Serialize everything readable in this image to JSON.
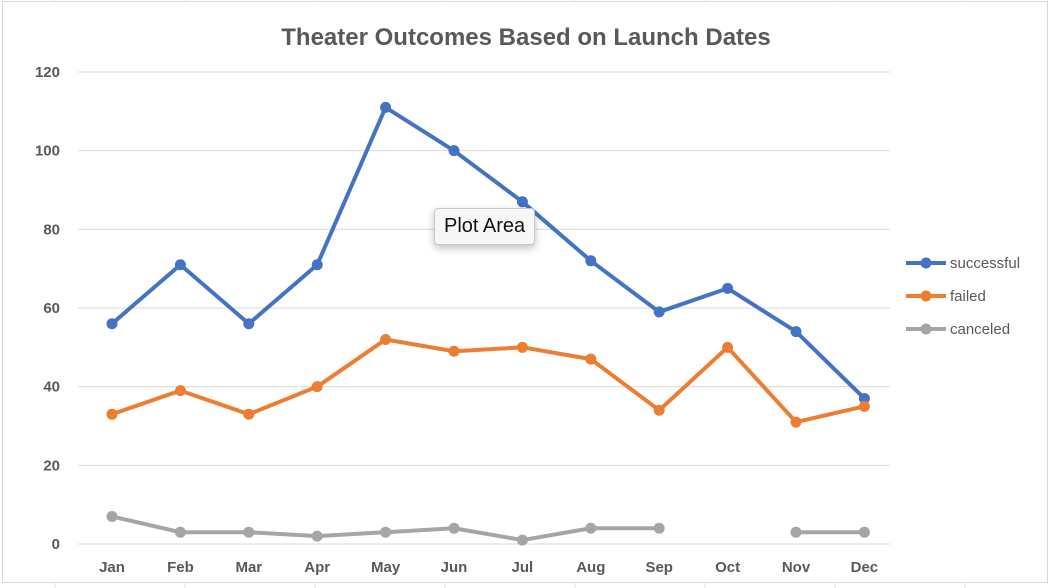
{
  "chart_data": {
    "type": "line",
    "title": "Theater Outcomes Based on Launch Dates",
    "xlabel": "",
    "ylabel": "",
    "categories": [
      "Jan",
      "Feb",
      "Mar",
      "Apr",
      "May",
      "Jun",
      "Jul",
      "Aug",
      "Sep",
      "Oct",
      "Nov",
      "Dec"
    ],
    "ylim": [
      0,
      120
    ],
    "yticks": [
      0,
      20,
      40,
      60,
      80,
      100,
      120
    ],
    "grid": true,
    "legend_position": "right",
    "series": [
      {
        "name": "successful",
        "color": "#4472c4",
        "values": [
          56,
          71,
          56,
          71,
          111,
          100,
          87,
          72,
          59,
          65,
          54,
          37
        ]
      },
      {
        "name": "failed",
        "color": "#ed7d31",
        "values": [
          33,
          39,
          33,
          40,
          52,
          49,
          50,
          47,
          34,
          50,
          31,
          35
        ]
      },
      {
        "name": "canceled",
        "color": "#a5a5a5",
        "values": [
          7,
          3,
          3,
          2,
          3,
          4,
          1,
          4,
          4,
          null,
          3,
          3
        ]
      }
    ]
  },
  "tooltip": {
    "text": "Plot Area"
  }
}
